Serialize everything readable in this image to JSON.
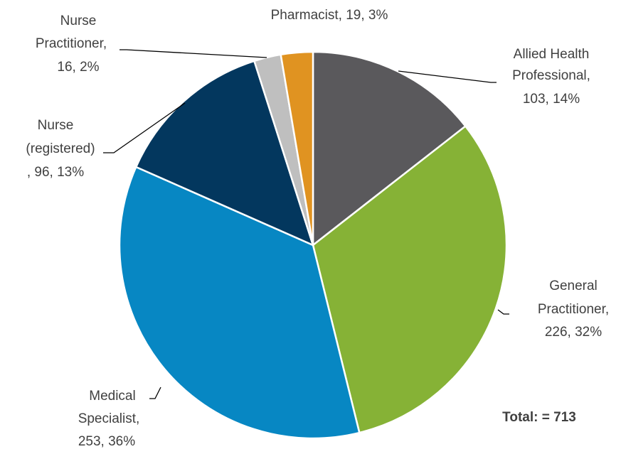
{
  "chart_data": {
    "type": "pie",
    "labels": [
      [
        "Allied Health",
        "Professional,",
        "103, 14%"
      ],
      [
        "General",
        "Practitioner,",
        "226, 32%"
      ],
      [
        "Medical",
        "Specialist,",
        "253, 36%"
      ],
      [
        "Nurse",
        "(registered)",
        ", 96, 13%"
      ],
      [
        "Nurse",
        "Practitioner,",
        "16, 2%"
      ],
      [
        "Pharmacist, 19, 3%"
      ]
    ],
    "values": [
      103,
      226,
      253,
      96,
      16,
      19
    ],
    "colors": [
      "#5a595c",
      "#86b236",
      "#0787c3",
      "#03375e",
      "#bfbfbf",
      "#e09321"
    ],
    "annotation": "Total: = 713"
  }
}
